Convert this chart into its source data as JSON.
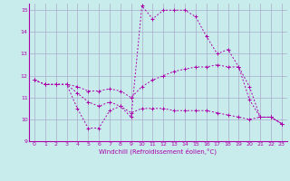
{
  "xlabel": "Windchill (Refroidissement éolien,°C)",
  "background_color": "#c8ecec",
  "grid_color": "#aaaacc",
  "line_color": "#aa00aa",
  "xlim": [
    -0.5,
    23.5
  ],
  "ylim": [
    9,
    15.3
  ],
  "xticks": [
    0,
    1,
    2,
    3,
    4,
    5,
    6,
    7,
    8,
    9,
    10,
    11,
    12,
    13,
    14,
    15,
    16,
    17,
    18,
    19,
    20,
    21,
    22,
    23
  ],
  "yticks": [
    9,
    10,
    11,
    12,
    13,
    14,
    15
  ],
  "series": [
    {
      "x": [
        0,
        1,
        2,
        3,
        4,
        5,
        6,
        7,
        8,
        9,
        10,
        11,
        12,
        13,
        14,
        15,
        16,
        17,
        18,
        19,
        20,
        21,
        22,
        23
      ],
      "y": [
        11.8,
        11.6,
        11.6,
        11.6,
        10.5,
        9.6,
        9.6,
        10.4,
        10.6,
        10.1,
        15.2,
        14.6,
        15.0,
        15.0,
        15.0,
        14.7,
        13.8,
        13.0,
        13.2,
        12.4,
        10.9,
        10.1,
        10.1,
        9.8
      ]
    },
    {
      "x": [
        0,
        1,
        2,
        3,
        4,
        5,
        6,
        7,
        8,
        9,
        10,
        11,
        12,
        13,
        14,
        15,
        16,
        17,
        18,
        19,
        20,
        21,
        22,
        23
      ],
      "y": [
        11.8,
        11.6,
        11.6,
        11.6,
        11.5,
        11.3,
        11.3,
        11.4,
        11.3,
        11.0,
        11.5,
        11.8,
        12.0,
        12.2,
        12.3,
        12.4,
        12.4,
        12.5,
        12.4,
        12.4,
        11.5,
        10.1,
        10.1,
        9.8
      ]
    },
    {
      "x": [
        0,
        1,
        2,
        3,
        4,
        5,
        6,
        7,
        8,
        9,
        10,
        11,
        12,
        13,
        14,
        15,
        16,
        17,
        18,
        19,
        20,
        21,
        22,
        23
      ],
      "y": [
        11.8,
        11.6,
        11.6,
        11.6,
        11.2,
        10.8,
        10.6,
        10.8,
        10.6,
        10.3,
        10.5,
        10.5,
        10.5,
        10.4,
        10.4,
        10.4,
        10.4,
        10.3,
        10.2,
        10.1,
        10.0,
        10.1,
        10.1,
        9.8
      ]
    }
  ]
}
